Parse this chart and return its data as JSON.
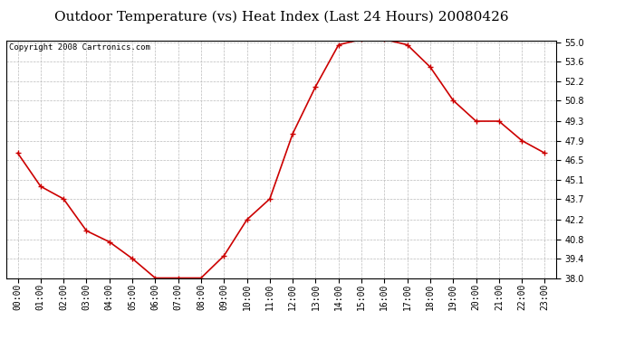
{
  "title": "Outdoor Temperature (vs) Heat Index (Last 24 Hours) 20080426",
  "copyright": "Copyright 2008 Cartronics.com",
  "x_labels": [
    "00:00",
    "01:00",
    "02:00",
    "03:00",
    "04:00",
    "05:00",
    "06:00",
    "07:00",
    "08:00",
    "09:00",
    "10:00",
    "11:00",
    "12:00",
    "13:00",
    "14:00",
    "15:00",
    "16:00",
    "17:00",
    "18:00",
    "19:00",
    "20:00",
    "21:00",
    "22:00",
    "23:00"
  ],
  "y_values": [
    47.0,
    44.6,
    43.7,
    41.4,
    40.6,
    39.4,
    38.0,
    38.0,
    38.0,
    39.6,
    42.2,
    43.7,
    48.4,
    51.8,
    54.8,
    55.2,
    55.2,
    54.8,
    53.2,
    50.8,
    49.3,
    49.3,
    47.9,
    47.0
  ],
  "ylim_min": 38.0,
  "ylim_max": 55.0,
  "y_ticks": [
    38.0,
    39.4,
    40.8,
    42.2,
    43.7,
    45.1,
    46.5,
    47.9,
    49.3,
    50.8,
    52.2,
    53.6,
    55.0
  ],
  "line_color": "#cc0000",
  "marker": "+",
  "marker_size": 5,
  "marker_color": "#cc0000",
  "bg_color": "#ffffff",
  "grid_color": "#bbbbbb",
  "title_fontsize": 11,
  "copyright_fontsize": 6.5,
  "tick_fontsize": 7,
  "ylabel_fontsize": 8
}
